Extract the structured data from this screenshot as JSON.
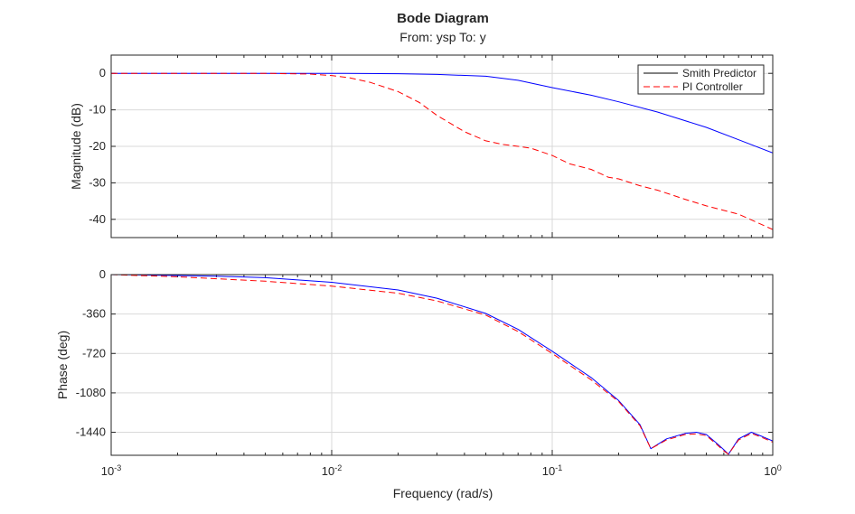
{
  "chart_data": {
    "type": "line",
    "title": "Bode Diagram",
    "subtitle": "From: ysp  To: y",
    "xlabel": "Frequency (rad/s)",
    "x_scale": "log",
    "xlim": [
      0.001,
      1
    ],
    "x_ticks": [
      {
        "value": 0.001,
        "base": "10",
        "exp": "-3"
      },
      {
        "value": 0.01,
        "base": "10",
        "exp": "-2"
      },
      {
        "value": 0.1,
        "base": "10",
        "exp": "-1"
      },
      {
        "value": 1,
        "base": "10",
        "exp": "0"
      }
    ],
    "grid": true,
    "legend": {
      "placement": "top-right",
      "entries": [
        {
          "name": "Smith Predictor",
          "color": "#0000ff",
          "style": "solid"
        },
        {
          "name": "PI Controller",
          "color": "#ff0000",
          "style": "dashed"
        }
      ]
    },
    "panels": [
      {
        "ylabel": "Magnitude (dB)",
        "ylim": [
          -45,
          5
        ],
        "yticks": [
          0,
          -10,
          -20,
          -30,
          -40
        ],
        "series": [
          {
            "name": "Smith Predictor",
            "color": "#0000ff",
            "style": "solid",
            "x": [
              0.001,
              0.002,
              0.005,
              0.01,
              0.02,
              0.03,
              0.05,
              0.07,
              0.1,
              0.15,
              0.2,
              0.3,
              0.5,
              0.7,
              1.0
            ],
            "y": [
              0,
              0,
              0,
              0,
              -0.1,
              -0.3,
              -0.8,
              -1.9,
              -3.9,
              -6.0,
              -7.8,
              -10.6,
              -14.8,
              -18.2,
              -21.8
            ]
          },
          {
            "name": "PI Controller",
            "color": "#ff0000",
            "style": "dashed",
            "x": [
              0.001,
              0.005,
              0.008,
              0.01,
              0.012,
              0.015,
              0.02,
              0.025,
              0.03,
              0.04,
              0.05,
              0.06,
              0.07,
              0.08,
              0.1,
              0.12,
              0.15,
              0.18,
              0.2,
              0.25,
              0.3,
              0.4,
              0.5,
              0.7,
              1.0
            ],
            "y": [
              0,
              0,
              -0.2,
              -0.6,
              -1.2,
              -2.5,
              -5.0,
              -8.0,
              -11.5,
              -16.0,
              -18.5,
              -19.5,
              -20.0,
              -20.5,
              -22.5,
              -24.8,
              -26.3,
              -28.5,
              -28.9,
              -30.8,
              -32.0,
              -34.5,
              -36.3,
              -38.6,
              -42.8
            ]
          }
        ]
      },
      {
        "ylabel": "Phase (deg)",
        "ylim": [
          -1650,
          0
        ],
        "yticks": [
          0,
          -360,
          -720,
          -1080,
          -1440
        ],
        "series": [
          {
            "name": "Smith Predictor",
            "color": "#0000ff",
            "style": "solid",
            "x": [
              0.001,
              0.002,
              0.003,
              0.005,
              0.01,
              0.02,
              0.03,
              0.05,
              0.07,
              0.1,
              0.15,
              0.2,
              0.25,
              0.28,
              0.33,
              0.4,
              0.45,
              0.5,
              0.55,
              0.6,
              0.63,
              0.7,
              0.8,
              0.9,
              1.0
            ],
            "y": [
              0,
              -8,
              -14,
              -28,
              -70,
              -140,
              -215,
              -355,
              -500,
              -700,
              -940,
              -1150,
              -1370,
              -1590,
              -1500,
              -1450,
              -1440,
              -1460,
              -1530,
              -1600,
              -1640,
              -1500,
              -1440,
              -1480,
              -1520
            ]
          },
          {
            "name": "PI Controller",
            "color": "#ff0000",
            "style": "dashed",
            "x": [
              0.001,
              0.002,
              0.005,
              0.01,
              0.02,
              0.03,
              0.05,
              0.07,
              0.1,
              0.15,
              0.2,
              0.25,
              0.28,
              0.33,
              0.4,
              0.45,
              0.5,
              0.55,
              0.6,
              0.63,
              0.7,
              0.8,
              0.9,
              1.0
            ],
            "y": [
              0,
              -20,
              -60,
              -105,
              -170,
              -240,
              -370,
              -520,
              -720,
              -960,
              -1160,
              -1380,
              -1590,
              -1510,
              -1460,
              -1455,
              -1470,
              -1540,
              -1610,
              -1640,
              -1510,
              -1450,
              -1490,
              -1530
            ]
          }
        ]
      }
    ]
  }
}
